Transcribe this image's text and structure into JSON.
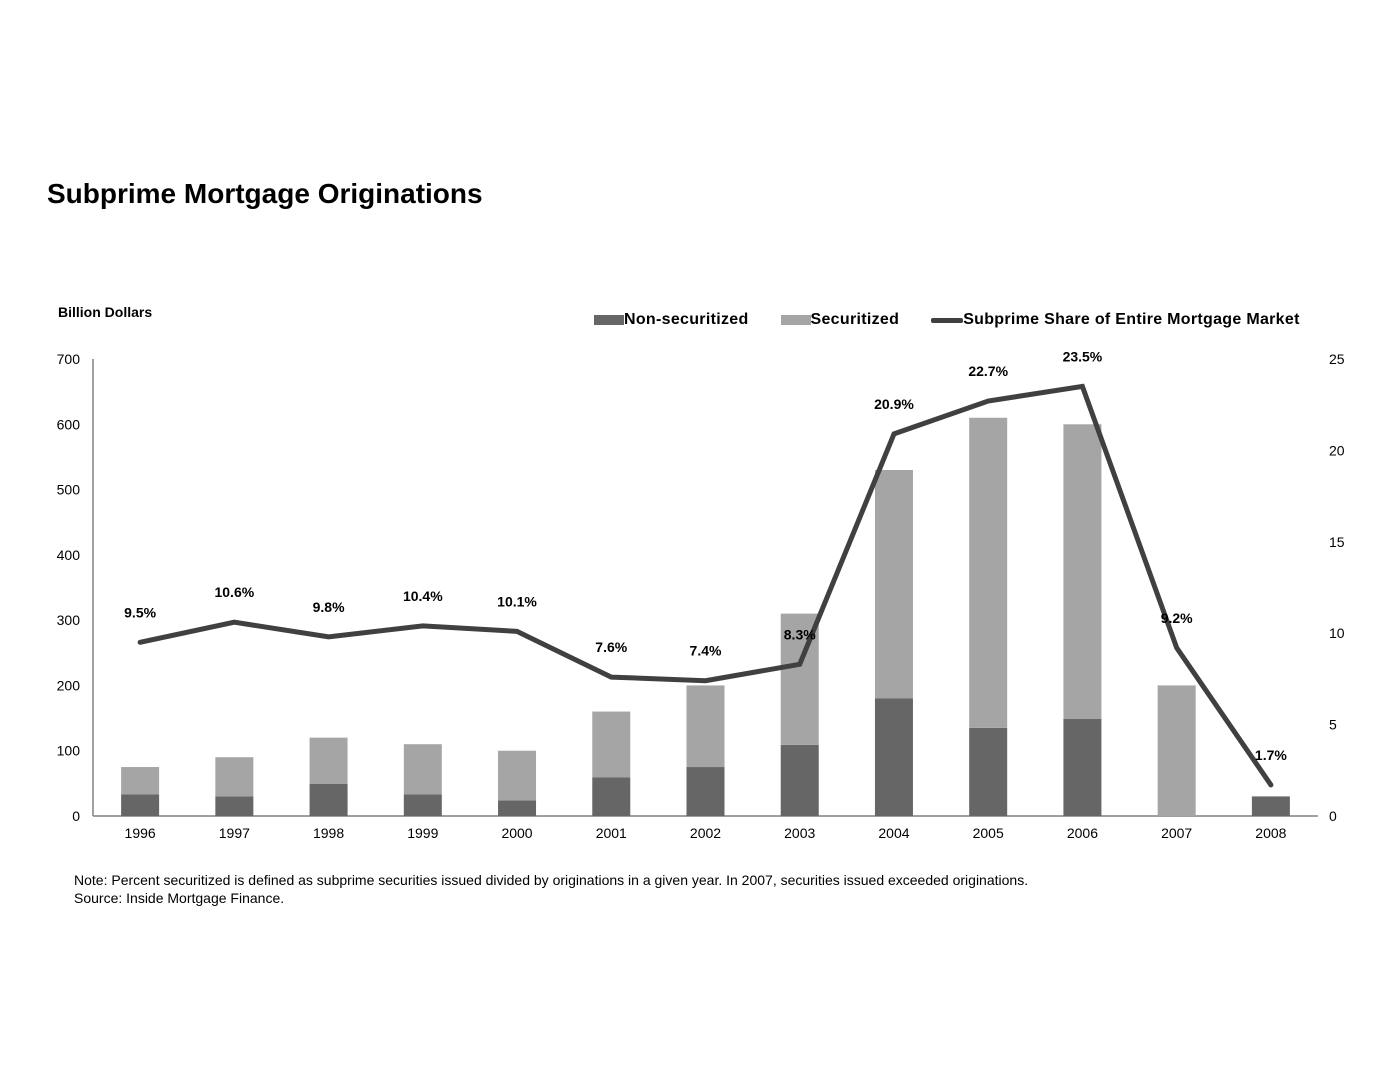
{
  "chart_data": {
    "type": "bar",
    "title": "Subprime Mortgage Originations",
    "ylabel_left": "Billion Dollars",
    "ylabel_right": "",
    "xlabel": "",
    "categories": [
      "1996",
      "1997",
      "1998",
      "1999",
      "2000",
      "2001",
      "2002",
      "2003",
      "2004",
      "2005",
      "2006",
      "2007",
      "2008"
    ],
    "ylim_left": [
      0,
      700
    ],
    "yticks_left": [
      0,
      100,
      200,
      300,
      400,
      500,
      600,
      700
    ],
    "ylim_right": [
      0,
      25
    ],
    "yticks_right": [
      0,
      5,
      10,
      15,
      20,
      25
    ],
    "series": [
      {
        "name": "Non-securitized",
        "kind": "bar",
        "stack": "total",
        "color": "#666666",
        "values": [
          33,
          30,
          49,
          33,
          24,
          59,
          75,
          109,
          180,
          135,
          149,
          0,
          30
        ]
      },
      {
        "name": "Securitized",
        "kind": "bar",
        "stack": "total",
        "color": "#a5a5a5",
        "values": [
          42,
          60,
          71,
          77,
          76,
          101,
          125,
          201,
          350,
          475,
          451,
          200,
          0
        ]
      },
      {
        "name": "Subprime Share of Entire Mortgage Market",
        "kind": "line",
        "axis": "right",
        "color": "#404040",
        "values": [
          9.5,
          10.6,
          9.8,
          10.4,
          10.1,
          7.6,
          7.4,
          8.3,
          20.9,
          22.7,
          23.5,
          9.2,
          1.7
        ],
        "labels": [
          "9.5%",
          "10.6%",
          "9.8%",
          "10.4%",
          "10.1%",
          "7.6%",
          "7.4%",
          "8.3%",
          "20.9%",
          "22.7%",
          "23.5%",
          "9.2%",
          "1.7%"
        ]
      }
    ],
    "legend_position": "top-right",
    "grid": false
  },
  "note": {
    "line1": "Note: Percent securitized is defined as subprime securities issued divided by originations in a given year. In 2007, securities issued exceeded originations.",
    "line2": "Source: Inside Mortgage Finance."
  }
}
